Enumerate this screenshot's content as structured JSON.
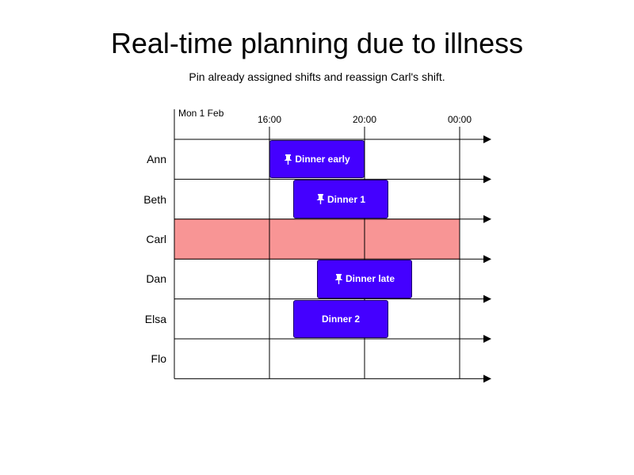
{
  "title": "Real-time planning due to illness",
  "subtitle": "Pin already assigned shifts and reassign Carl's shift.",
  "date_label": "Mon 1 Feb",
  "time_labels": [
    "16:00",
    "20:00",
    "00:00"
  ],
  "employees": [
    "Ann",
    "Beth",
    "Carl",
    "Dan",
    "Elsa",
    "Flo"
  ],
  "shifts": [
    {
      "label": "Dinner early",
      "employee": "Ann",
      "start": "16:00",
      "end": "20:00",
      "pinned": true
    },
    {
      "label": "Dinner 1",
      "employee": "Beth",
      "start": "17:00",
      "end": "21:00",
      "pinned": true
    },
    {
      "label": "Dinner late",
      "employee": "Dan",
      "start": "18:00",
      "end": "22:00",
      "pinned": true
    },
    {
      "label": "Dinner 2",
      "employee": "Elsa",
      "start": "17:00",
      "end": "21:00",
      "pinned": false
    }
  ],
  "unavailable_employee": "Carl",
  "colors": {
    "shift_fill": "#4400ff",
    "shift_border": "#1a0066",
    "unavailable_fill": "#f89595",
    "unavailable_border": "#c05050"
  },
  "icons": {
    "pin": "pushpin-icon",
    "arrow": "arrow-right-icon"
  }
}
